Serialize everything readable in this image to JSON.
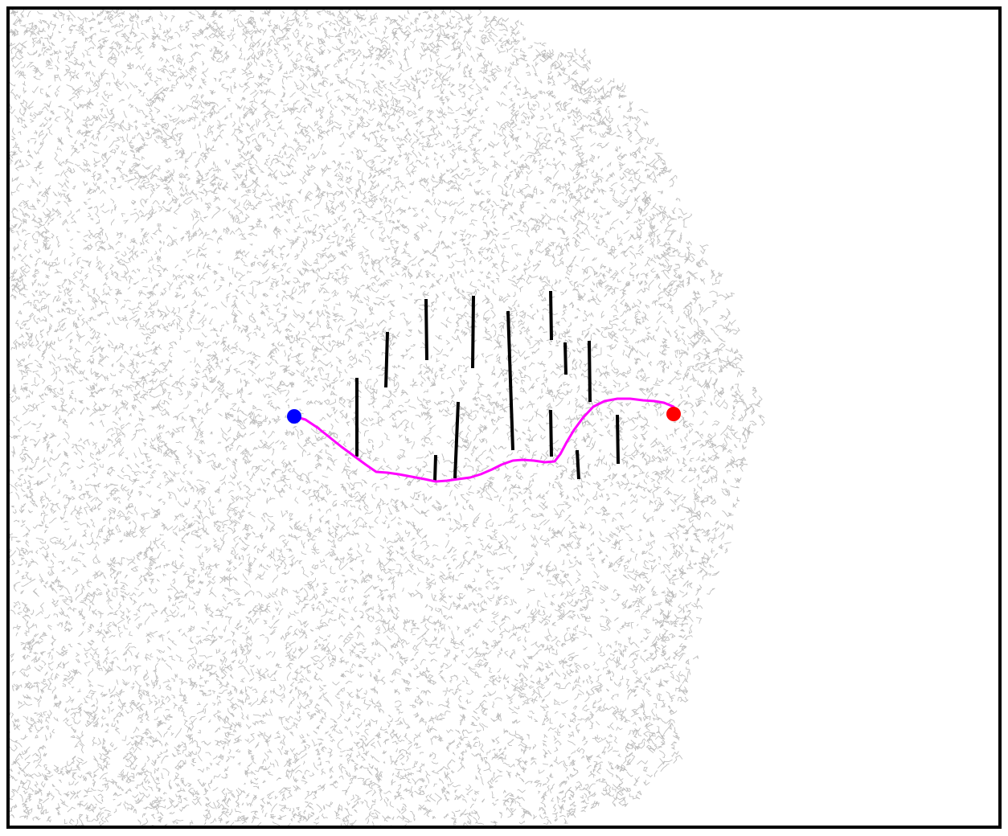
{
  "colors": {
    "background": "#ffffff",
    "frame": "#000000",
    "tree": "#bdbdbd",
    "obstacle": "#000000",
    "path": "#ff00ff",
    "start": "#0000ff",
    "goal": "#ff0000"
  },
  "elements": {
    "tree": "rrt-exploration-tree",
    "path": "planned-path",
    "start": "start-marker",
    "goal": "goal-marker",
    "obstacles": "wall-obstacles"
  }
}
